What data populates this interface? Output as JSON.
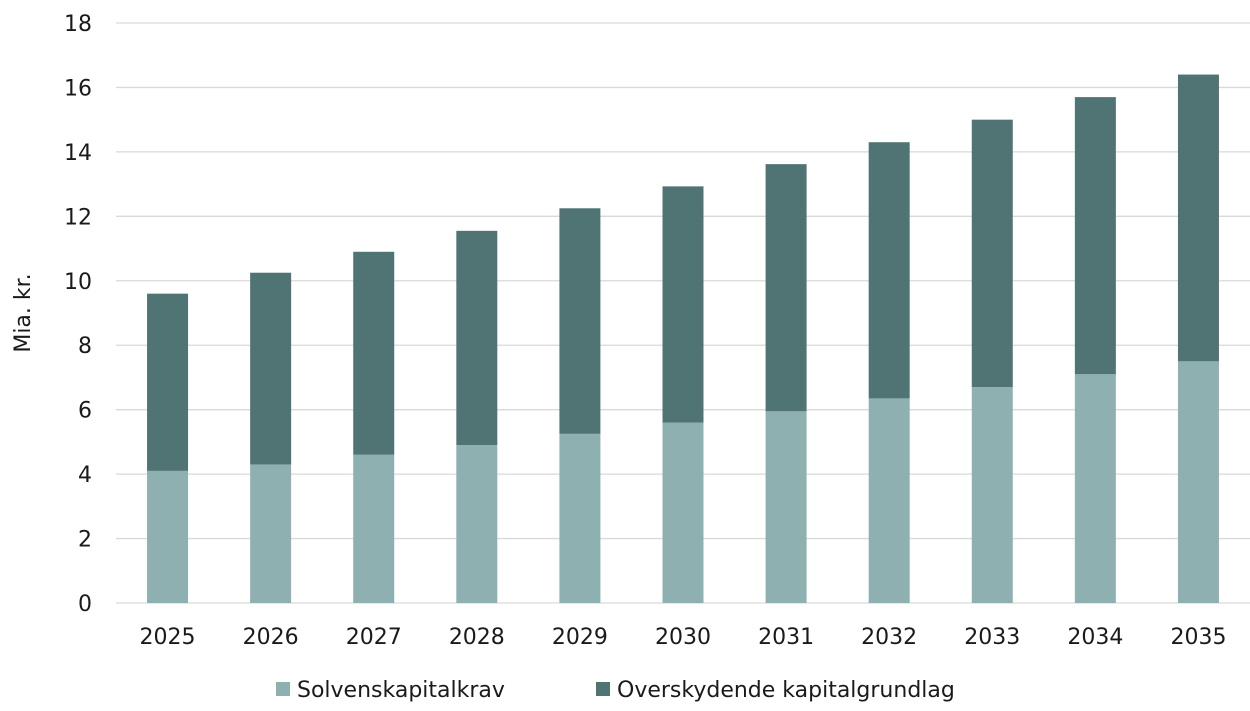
{
  "chart_data": {
    "type": "bar",
    "stacked": true,
    "title": "",
    "xlabel": "",
    "ylabel": "Mia. kr.",
    "ylim": [
      0,
      18
    ],
    "yticks": [
      0,
      2,
      4,
      6,
      8,
      10,
      12,
      14,
      16,
      18
    ],
    "grid": true,
    "legend_position": "bottom",
    "categories": [
      "2025",
      "2026",
      "2027",
      "2028",
      "2029",
      "2030",
      "2031",
      "2032",
      "2033",
      "2034",
      "2035"
    ],
    "series": [
      {
        "name": "Solvenskapitalkrav",
        "color": "#8fb0b0",
        "values": [
          4.1,
          4.3,
          4.6,
          4.9,
          5.25,
          5.6,
          5.95,
          6.35,
          6.7,
          7.1,
          7.5
        ]
      },
      {
        "name": "Overskydende kapitalgrundlag",
        "color": "#507473",
        "values": [
          5.5,
          5.95,
          6.3,
          6.65,
          7.0,
          7.33,
          7.67,
          7.95,
          8.3,
          8.6,
          8.9
        ]
      }
    ]
  }
}
